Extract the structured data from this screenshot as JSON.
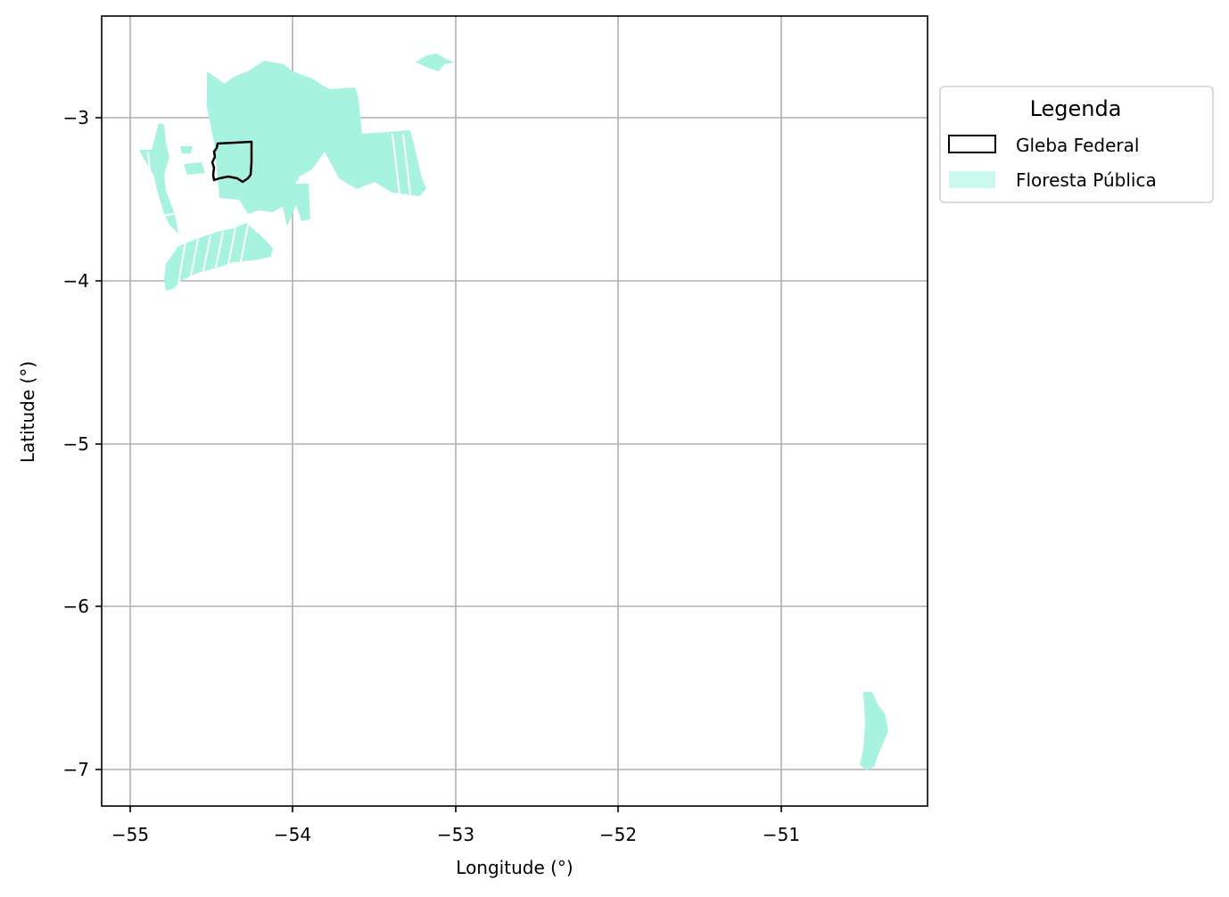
{
  "map": {
    "xlabel": "Longitude (°)",
    "ylabel": "Latitude (°)",
    "x_ticks": [
      "−55",
      "−54",
      "−53",
      "−52",
      "−51"
    ],
    "y_ticks": [
      "−3",
      "−4",
      "−5",
      "−6",
      "−7"
    ],
    "x_range": [
      -55.17,
      -50.1
    ],
    "y_range": [
      -7.23,
      -2.37
    ],
    "grid": true
  },
  "legend": {
    "title": "Legenda",
    "placement": "outside-right-top",
    "items": [
      {
        "label": "Gleba Federal",
        "style": "outline",
        "color": "#000000"
      },
      {
        "label": "Floresta Pública",
        "style": "fill",
        "color": "#a8f3df"
      }
    ]
  },
  "colors": {
    "forest": "#a8f3df",
    "gleba_outline": "#000000",
    "grid": "#b0b0b0"
  }
}
